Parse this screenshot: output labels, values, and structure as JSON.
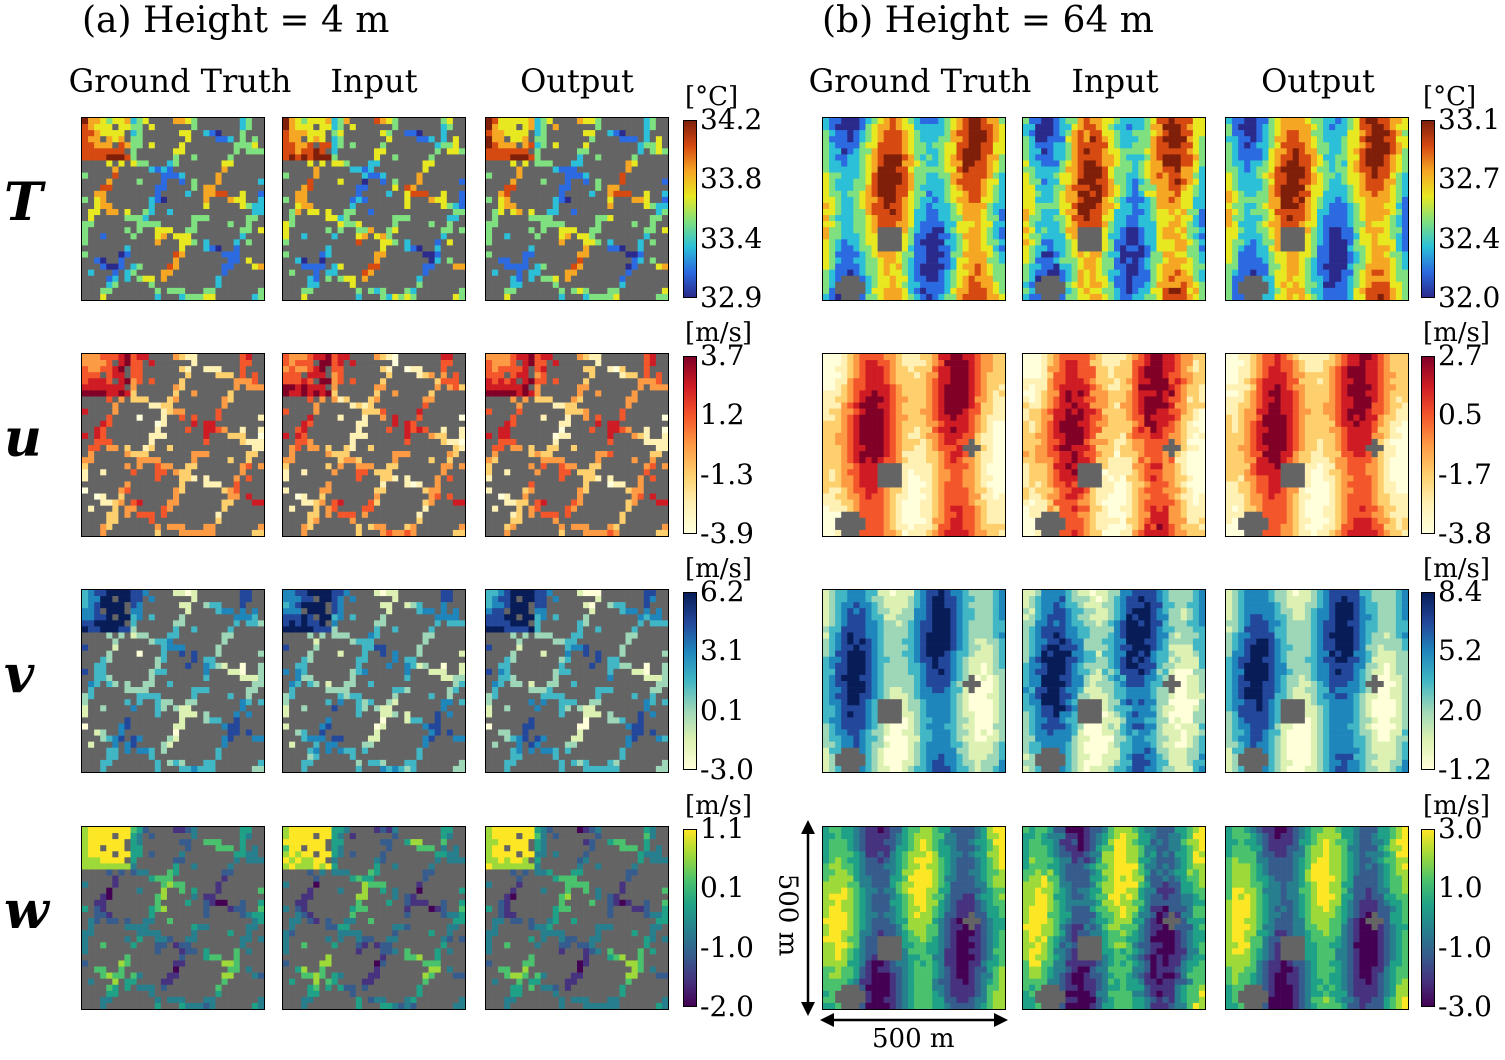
{
  "figure": {
    "group_a_title": "(a) Height = 4 m",
    "group_b_title": "(b) Height = 64 m",
    "column_headers": [
      "Ground Truth",
      "Input",
      "Output"
    ],
    "scale_label_x": "500 m",
    "scale_label_y": "500 m"
  },
  "rows": [
    {
      "var": "T",
      "unit": "[°C]",
      "colormap": "jet",
      "ticks_a": [
        "34.2",
        "33.8",
        "33.4",
        "32.9"
      ],
      "ticks_b": [
        "33.1",
        "32.7",
        "32.4",
        "32.0"
      ]
    },
    {
      "var": "u",
      "unit": "[m/s]",
      "colormap": "ylorrd",
      "ticks_a": [
        "3.7",
        "1.2",
        "-1.3",
        "-3.9"
      ],
      "ticks_b": [
        "2.7",
        "0.5",
        "-1.7",
        "-3.8"
      ]
    },
    {
      "var": "v",
      "unit": "[m/s]",
      "colormap": "ylgnbu",
      "ticks_a": [
        "6.2",
        "3.1",
        "0.1",
        "-3.0"
      ],
      "ticks_b": [
        "8.4",
        "5.2",
        "2.0",
        "-1.2"
      ]
    },
    {
      "var": "w",
      "unit": "[m/s]",
      "colormap": "viridis",
      "ticks_a": [
        "1.1",
        "0.1",
        "-1.0",
        "-2.0"
      ],
      "ticks_b": [
        "3.0",
        "1.0",
        "-1.0",
        "-3.0"
      ]
    }
  ],
  "colors": {
    "building": "#646464",
    "jet": [
      "#7f1f0a",
      "#d64a12",
      "#f5a623",
      "#e8e821",
      "#7fe07f",
      "#2bc0d8",
      "#2b6ae0",
      "#2a2a8c"
    ],
    "ylorrd": [
      "#800026",
      "#cf1c24",
      "#f4562b",
      "#fd9a44",
      "#fecf6d",
      "#fff0b4",
      "#ffffdc"
    ],
    "ylgnbu": [
      "#081d58",
      "#23479a",
      "#1f86bc",
      "#41b6c4",
      "#9dd7b8",
      "#dcf1b2",
      "#ffffd9"
    ],
    "viridis": [
      "#fde725",
      "#9ed93a",
      "#4ac26d",
      "#1fa187",
      "#277f8e",
      "#365c8d",
      "#46327e",
      "#440154"
    ]
  }
}
